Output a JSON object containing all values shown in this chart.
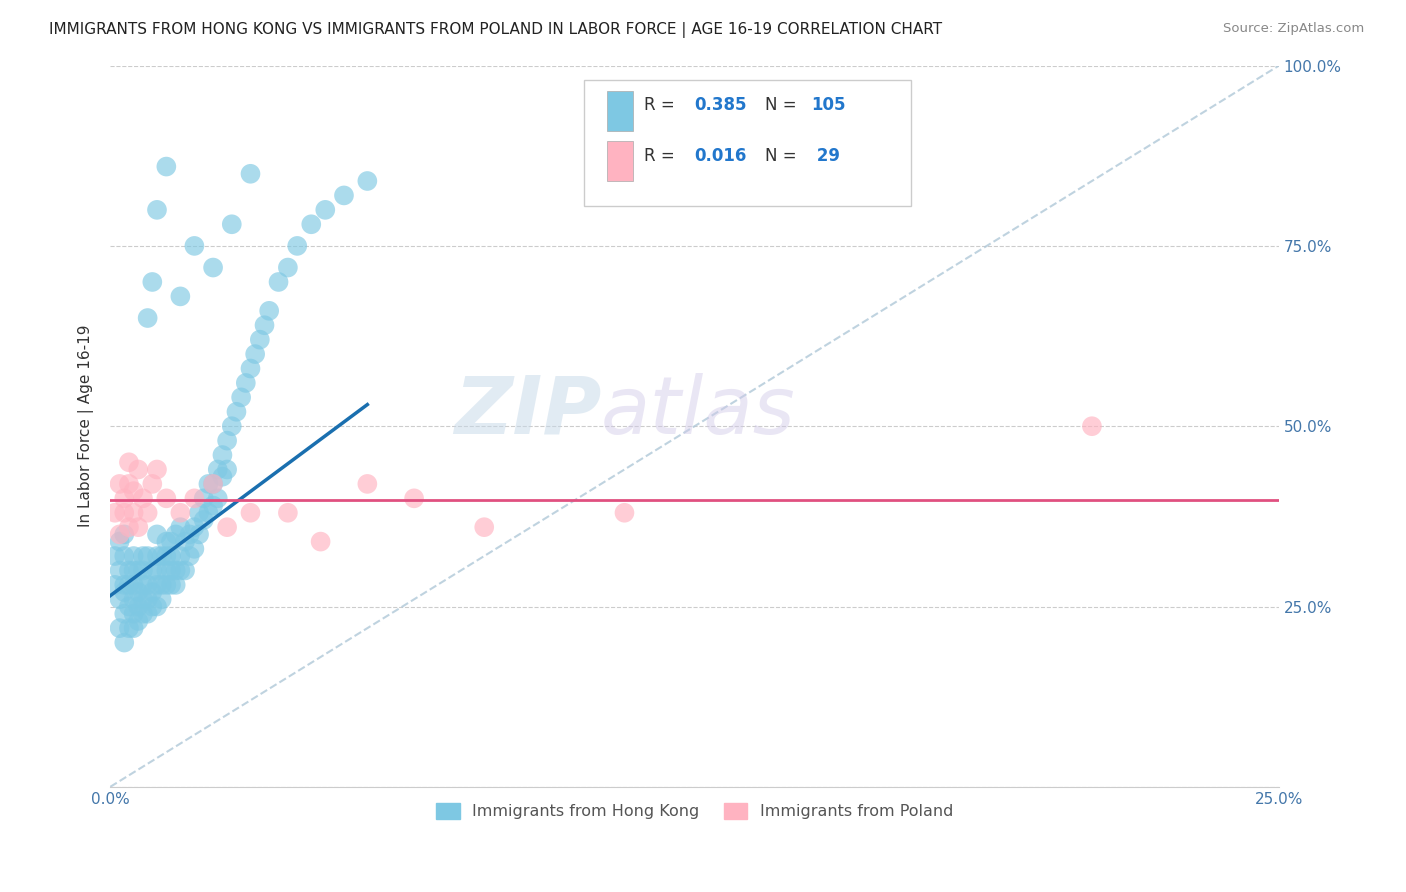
{
  "title": "IMMIGRANTS FROM HONG KONG VS IMMIGRANTS FROM POLAND IN LABOR FORCE | AGE 16-19 CORRELATION CHART",
  "source": "Source: ZipAtlas.com",
  "ylabel": "In Labor Force | Age 16-19",
  "xlim": [
    0.0,
    0.25
  ],
  "ylim": [
    0.0,
    1.0
  ],
  "color_hk": "#7ec8e3",
  "color_pl": "#ffb3c1",
  "color_hk_line": "#1a6faf",
  "color_pl_line": "#e05080",
  "color_diag": "#aaccdd",
  "watermark_zip": "ZIP",
  "watermark_atlas": "atlas",
  "hk_x": [
    0.001,
    0.001,
    0.002,
    0.002,
    0.002,
    0.002,
    0.003,
    0.003,
    0.003,
    0.003,
    0.003,
    0.003,
    0.004,
    0.004,
    0.004,
    0.004,
    0.005,
    0.005,
    0.005,
    0.005,
    0.005,
    0.005,
    0.006,
    0.006,
    0.006,
    0.006,
    0.007,
    0.007,
    0.007,
    0.007,
    0.007,
    0.008,
    0.008,
    0.008,
    0.008,
    0.009,
    0.009,
    0.009,
    0.01,
    0.01,
    0.01,
    0.01,
    0.01,
    0.011,
    0.011,
    0.011,
    0.012,
    0.012,
    0.012,
    0.012,
    0.013,
    0.013,
    0.013,
    0.013,
    0.014,
    0.014,
    0.014,
    0.015,
    0.015,
    0.015,
    0.016,
    0.016,
    0.017,
    0.017,
    0.018,
    0.018,
    0.019,
    0.019,
    0.02,
    0.02,
    0.021,
    0.021,
    0.022,
    0.022,
    0.023,
    0.023,
    0.024,
    0.024,
    0.025,
    0.025,
    0.026,
    0.027,
    0.028,
    0.029,
    0.03,
    0.031,
    0.032,
    0.033,
    0.034,
    0.036,
    0.038,
    0.04,
    0.043,
    0.046,
    0.05,
    0.055,
    0.008,
    0.009,
    0.01,
    0.012,
    0.015,
    0.018,
    0.022,
    0.026,
    0.03
  ],
  "hk_y": [
    0.32,
    0.28,
    0.3,
    0.26,
    0.34,
    0.22,
    0.28,
    0.24,
    0.32,
    0.27,
    0.2,
    0.35,
    0.25,
    0.3,
    0.22,
    0.28,
    0.24,
    0.28,
    0.32,
    0.26,
    0.3,
    0.22,
    0.25,
    0.3,
    0.27,
    0.23,
    0.26,
    0.3,
    0.28,
    0.24,
    0.32,
    0.26,
    0.28,
    0.32,
    0.24,
    0.27,
    0.3,
    0.25,
    0.28,
    0.32,
    0.25,
    0.3,
    0.35,
    0.28,
    0.32,
    0.26,
    0.3,
    0.34,
    0.28,
    0.32,
    0.3,
    0.34,
    0.28,
    0.32,
    0.3,
    0.35,
    0.28,
    0.32,
    0.36,
    0.3,
    0.34,
    0.3,
    0.35,
    0.32,
    0.36,
    0.33,
    0.38,
    0.35,
    0.4,
    0.37,
    0.42,
    0.38,
    0.42,
    0.39,
    0.44,
    0.4,
    0.46,
    0.43,
    0.48,
    0.44,
    0.5,
    0.52,
    0.54,
    0.56,
    0.58,
    0.6,
    0.62,
    0.64,
    0.66,
    0.7,
    0.72,
    0.75,
    0.78,
    0.8,
    0.82,
    0.84,
    0.65,
    0.7,
    0.8,
    0.86,
    0.68,
    0.75,
    0.72,
    0.78,
    0.85
  ],
  "pl_x": [
    0.001,
    0.002,
    0.002,
    0.003,
    0.003,
    0.004,
    0.004,
    0.004,
    0.005,
    0.005,
    0.006,
    0.006,
    0.007,
    0.008,
    0.009,
    0.01,
    0.012,
    0.015,
    0.018,
    0.022,
    0.025,
    0.03,
    0.038,
    0.045,
    0.055,
    0.065,
    0.08,
    0.11,
    0.21
  ],
  "pl_y": [
    0.38,
    0.42,
    0.35,
    0.4,
    0.38,
    0.36,
    0.42,
    0.45,
    0.38,
    0.41,
    0.44,
    0.36,
    0.4,
    0.38,
    0.42,
    0.44,
    0.4,
    0.38,
    0.4,
    0.42,
    0.36,
    0.38,
    0.38,
    0.34,
    0.42,
    0.4,
    0.36,
    0.38,
    0.5
  ],
  "hk_line_x0": 0.0,
  "hk_line_y0": 0.265,
  "hk_line_x1": 0.055,
  "hk_line_y1": 0.53,
  "pl_line_y": 0.398,
  "diag_color": "#b0c8d8"
}
